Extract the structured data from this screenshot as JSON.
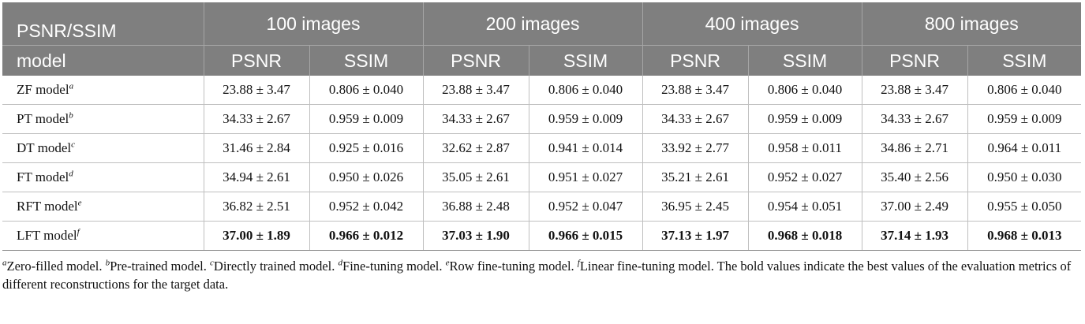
{
  "table": {
    "corner_top": "PSNR/SSIM",
    "corner_bottom": "model",
    "groups": [
      "100 images",
      "200 images",
      "400 images",
      "800 images"
    ],
    "metric_labels": [
      "PSNR",
      "SSIM"
    ],
    "rows": [
      {
        "model": "ZF model",
        "sup": "a",
        "values": [
          "23.88 ± 3.47",
          "0.806 ± 0.040",
          "23.88 ± 3.47",
          "0.806 ± 0.040",
          "23.88 ± 3.47",
          "0.806 ± 0.040",
          "23.88 ± 3.47",
          "0.806 ± 0.040"
        ]
      },
      {
        "model": "PT model",
        "sup": "b",
        "values": [
          "34.33 ± 2.67",
          "0.959 ± 0.009",
          "34.33 ± 2.67",
          "0.959 ± 0.009",
          "34.33 ± 2.67",
          "0.959 ± 0.009",
          "34.33 ± 2.67",
          "0.959 ± 0.009"
        ]
      },
      {
        "model": "DT model",
        "sup": "c",
        "values": [
          "31.46 ± 2.84",
          "0.925 ± 0.016",
          "32.62 ± 2.87",
          "0.941 ± 0.014",
          "33.92 ± 2.77",
          "0.958 ± 0.011",
          "34.86 ± 2.71",
          "0.964 ± 0.011"
        ]
      },
      {
        "model": "FT model",
        "sup": "d",
        "values": [
          "34.94 ± 2.61",
          "0.950 ± 0.026",
          "35.05 ± 2.61",
          "0.951 ± 0.027",
          "35.21 ± 2.61",
          "0.952 ± 0.027",
          "35.40 ± 2.56",
          "0.950 ± 0.030"
        ]
      },
      {
        "model": "RFT model",
        "sup": "e",
        "values": [
          "36.82 ± 2.51",
          "0.952 ± 0.042",
          "36.88 ± 2.48",
          "0.952 ± 0.047",
          "36.95 ± 2.45",
          "0.954 ± 0.051",
          "37.00 ± 2.49",
          "0.955 ± 0.050"
        ]
      },
      {
        "model": "LFT model",
        "sup": "f",
        "bold": true,
        "values": [
          "37.00 ± 1.89",
          "0.966 ± 0.012",
          "37.03 ± 1.90",
          "0.966 ± 0.015",
          "37.13 ± 1.97",
          "0.968 ± 0.018",
          "37.14 ± 1.93",
          "0.968 ± 0.013"
        ]
      }
    ]
  },
  "footnotes": [
    {
      "sup": "a",
      "text": "Zero-filled model. "
    },
    {
      "sup": "b",
      "text": "Pre-trained model. "
    },
    {
      "sup": "c",
      "text": "Directly trained model. "
    },
    {
      "sup": "d",
      "text": "Fine-tuning model. "
    },
    {
      "sup": "e",
      "text": "Row fine-tuning model. "
    },
    {
      "sup": "f",
      "text": "Linear fine-tuning model. The bold values indicate the best values of the evaluation metrics of different reconstructions for the target data."
    }
  ],
  "colors": {
    "header_bg": "#7f7f7f",
    "header_text": "#ffffff",
    "grid": "#bfbfbf"
  }
}
